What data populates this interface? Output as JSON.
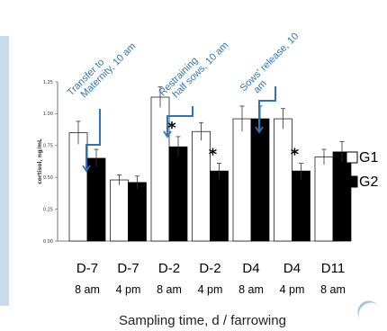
{
  "chart_data": {
    "type": "bar",
    "ylabel": "cortisol, ng/mL",
    "xlabel": "Sampling time, d / farrowing",
    "ylim": [
      0,
      1.25
    ],
    "yticks": [
      "0.00",
      "0.25",
      "0.50",
      "0.75",
      "1.00",
      "1.25"
    ],
    "categories": [
      {
        "day": "D-7",
        "time": "8 am"
      },
      {
        "day": "D-7",
        "time": "4 pm"
      },
      {
        "day": "D-2",
        "time": "8 am"
      },
      {
        "day": "D-2",
        "time": "4 pm"
      },
      {
        "day": "D4",
        "time": "8 am"
      },
      {
        "day": "D4",
        "time": "4 pm"
      },
      {
        "day": "D11",
        "time": "8 am"
      }
    ],
    "series": [
      {
        "name": "G1",
        "color": "#ffffff",
        "values": [
          0.85,
          0.48,
          1.13,
          0.86,
          0.96,
          0.96,
          0.66
        ],
        "errors": [
          0.09,
          0.04,
          0.08,
          0.07,
          0.1,
          0.08,
          0.06
        ]
      },
      {
        "name": "G2",
        "color": "#000000",
        "values": [
          0.65,
          0.46,
          0.74,
          0.55,
          0.96,
          0.55,
          0.7
        ],
        "errors": [
          0.07,
          0.05,
          0.08,
          0.06,
          0.1,
          0.06,
          0.08
        ]
      }
    ],
    "significance": [
      false,
      false,
      true,
      true,
      false,
      true,
      false
    ],
    "significance_symbol": "*",
    "annotations": [
      {
        "text": [
          "Transfer to",
          "Maternity, 10 am"
        ]
      },
      {
        "text": [
          "Restraining",
          "half sows, 10 am"
        ]
      },
      {
        "text": [
          "Sows' release, 10",
          "am"
        ]
      }
    ],
    "legend_position": "right"
  },
  "colors": {
    "annotation": "#2e75b6",
    "accent_strip": "#c6dcec"
  }
}
